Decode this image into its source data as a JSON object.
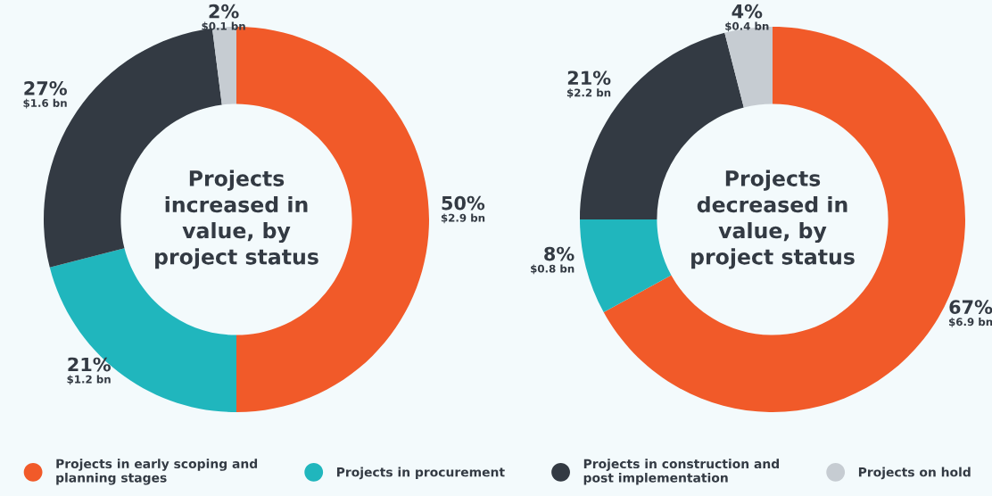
{
  "chart_data": [
    {
      "type": "donut",
      "title": "Projects increased in value, by project status",
      "categories": [
        "Projects in early scoping and planning stages",
        "Projects in procurement",
        "Projects in construction and post implementation",
        "Projects on hold"
      ],
      "values": [
        50,
        21,
        27,
        2
      ],
      "colors": [
        "#f15a29",
        "#20b6bd",
        "#333a43",
        "#c6ccd2"
      ],
      "value_labels": [
        "50%\n$2.9 bn",
        "21%\n$1.2 bn",
        "27%\n$1.6 bn",
        "2%\n$0.1 bn"
      ],
      "legend": "bottom"
    },
    {
      "type": "donut",
      "title": "Projects decreased in value, by project status",
      "categories": [
        null,
        null,
        null,
        null
      ],
      "values": [
        67,
        8,
        21,
        4
      ],
      "colors": [
        "#f15a29",
        "#20b6bd",
        "#333a43",
        "#c6ccd2"
      ],
      "value_labels": [
        "67%\n$6.9 bn",
        "8%\n$0.8 bn",
        "21%\n$2.2 bn",
        "4%\n$0.4 bn"
      ]
    }
  ]
}
